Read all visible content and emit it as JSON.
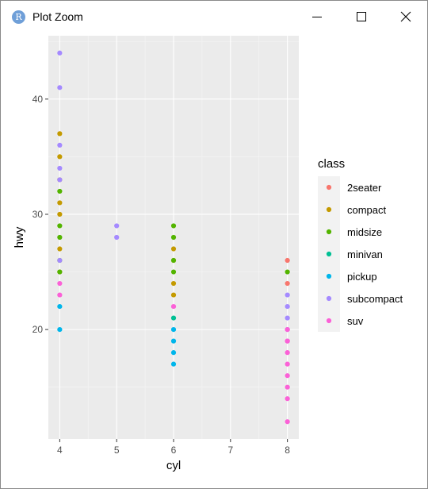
{
  "window": {
    "title": "Plot Zoom",
    "app_icon_glyph": "R",
    "controls": [
      "minimize",
      "maximize",
      "close"
    ]
  },
  "chart_data": {
    "type": "scatter",
    "xlabel": "cyl",
    "ylabel": "hwy",
    "xlim": [
      3.8,
      8.2
    ],
    "ylim": [
      10.5,
      45.5
    ],
    "x_ticks": [
      4,
      5,
      6,
      7,
      8
    ],
    "y_ticks": [
      20,
      30,
      40
    ],
    "grid": true,
    "background": "#ebebeb",
    "legend_position": "right",
    "legend_title": "class",
    "series": [
      {
        "name": "2seater",
        "color": "#f8766d",
        "x": [
          8,
          8
        ],
        "y": [
          26,
          24
        ]
      },
      {
        "name": "compact",
        "color": "#c49a00",
        "x": [
          4,
          4,
          4,
          4,
          4,
          4,
          4,
          6,
          6,
          6,
          6
        ],
        "y": [
          37,
          35,
          33,
          31,
          30,
          27,
          25,
          27,
          26,
          24,
          23
        ]
      },
      {
        "name": "midsize",
        "color": "#53b400",
        "x": [
          4,
          4,
          4,
          4,
          4,
          6,
          6,
          6,
          6,
          8
        ],
        "y": [
          32,
          29,
          28,
          26,
          25,
          29,
          28,
          26,
          25,
          25
        ]
      },
      {
        "name": "minivan",
        "color": "#00c094",
        "x": [
          6
        ],
        "y": [
          21
        ]
      },
      {
        "name": "pickup",
        "color": "#00b6eb",
        "x": [
          4,
          4,
          6,
          6,
          6,
          6
        ],
        "y": [
          22,
          20,
          20,
          19,
          18,
          17
        ]
      },
      {
        "name": "subcompact",
        "color": "#a58aff",
        "x": [
          4,
          4,
          4,
          4,
          4,
          4,
          5,
          5,
          8,
          8,
          8,
          8
        ],
        "y": [
          44,
          41,
          36,
          34,
          33,
          26,
          29,
          28,
          23,
          22,
          21,
          20
        ]
      },
      {
        "name": "suv",
        "color": "#fb61d7",
        "x": [
          4,
          4,
          6,
          8,
          8,
          8,
          8,
          8,
          8,
          8,
          8,
          8
        ],
        "y": [
          24,
          23,
          22,
          20,
          19,
          18,
          17,
          16,
          15,
          14,
          12,
          19
        ]
      }
    ]
  }
}
